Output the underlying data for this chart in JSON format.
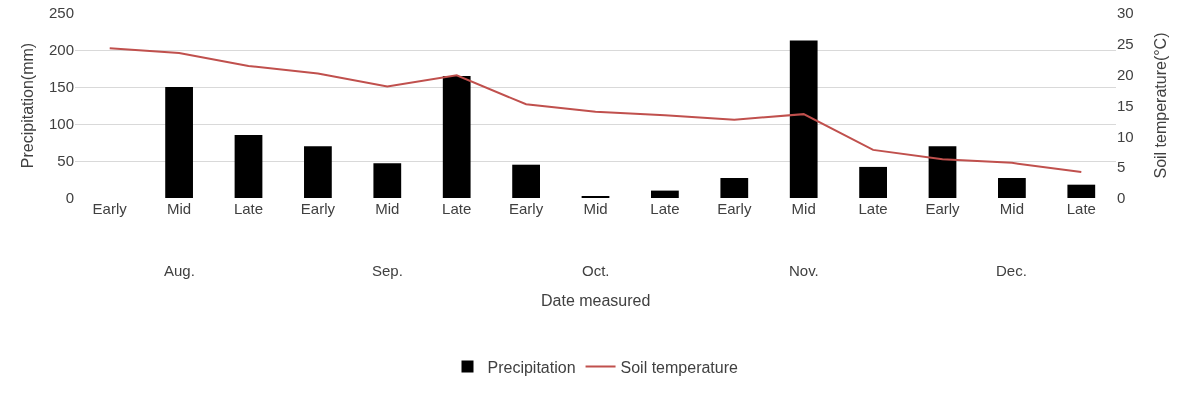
{
  "chart_data": {
    "type": "bar",
    "xlabel": "Date measured",
    "ylabel": "Precipitation(mm)",
    "y2label": "Soil temperature(°C)",
    "categories": [
      "Early",
      "Mid",
      "Late",
      "Early",
      "Mid",
      "Late",
      "Early",
      "Mid",
      "Late",
      "Early",
      "Mid",
      "Late",
      "Early",
      "Mid",
      "Late"
    ],
    "annotations": [
      "Aug.",
      "Sep.",
      "Oct.",
      "Nov.",
      "Dec."
    ],
    "series": [
      {
        "name": "Precipitation",
        "color": "#000000",
        "values": [
          0,
          150,
          85,
          70,
          47,
          165,
          45,
          2,
          10,
          27,
          213,
          42,
          70,
          27,
          18
        ]
      },
      {
        "name": "Soil temperature",
        "type": "line",
        "axis": "y2",
        "color": "#c0504d",
        "values": [
          24.3,
          23.5,
          21.4,
          20.2,
          18.1,
          19.9,
          15.2,
          14.0,
          13.4,
          12.7,
          13.6,
          7.8,
          6.3,
          5.7,
          4.2
        ]
      }
    ],
    "ylim": [
      0,
      250
    ],
    "yticks": [
      0,
      50,
      100,
      150,
      200,
      250
    ],
    "y2lim": [
      0,
      30
    ],
    "y2ticks": [
      0,
      5,
      10,
      15,
      20,
      25,
      30
    ],
    "grid": "y",
    "legend": "bottom",
    "marker": "none",
    "line_style": "solid"
  }
}
